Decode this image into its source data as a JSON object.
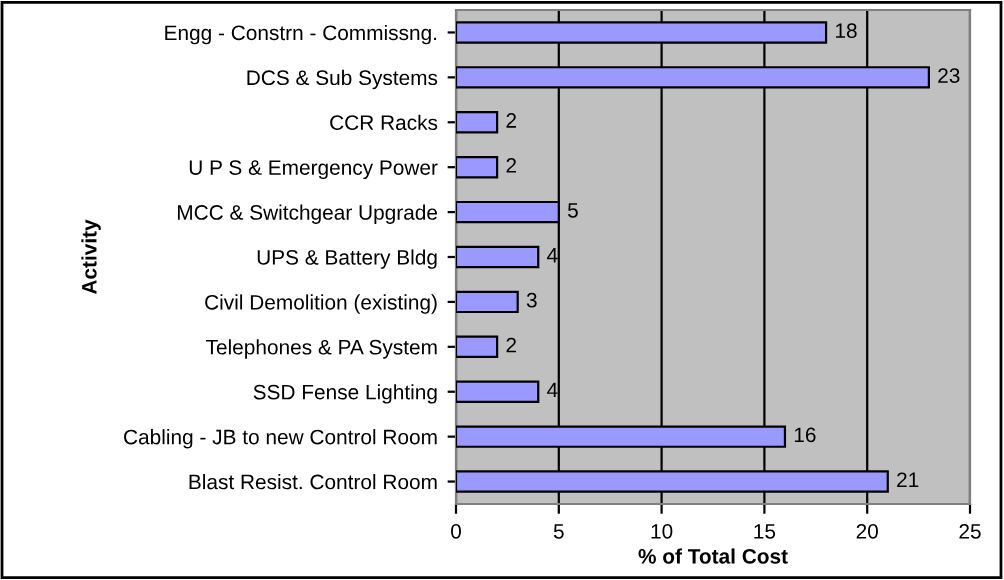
{
  "chart_data": {
    "type": "bar",
    "orientation": "horizontal",
    "xlabel": "% of Total Cost",
    "ylabel": "Activity",
    "categories": [
      "Engg - Constrn - Commissng.",
      "DCS & Sub Systems",
      "CCR Racks",
      "U P S & Emergency Power",
      "MCC & Switchgear Upgrade",
      "UPS & Battery Bldg",
      "Civil Demolition (existing)",
      "Telephones & PA System",
      "SSD Fense Lighting",
      "Cabling - JB to new Control Room",
      "Blast Resist. Control Room"
    ],
    "values": [
      18,
      23,
      2,
      2,
      5,
      4,
      3,
      2,
      4,
      16,
      21
    ],
    "color": "#9999ff",
    "xlim": [
      0,
      25
    ],
    "xticks": [
      0,
      5,
      10,
      15,
      20,
      25
    ],
    "grid": "x",
    "data_labels": true
  }
}
